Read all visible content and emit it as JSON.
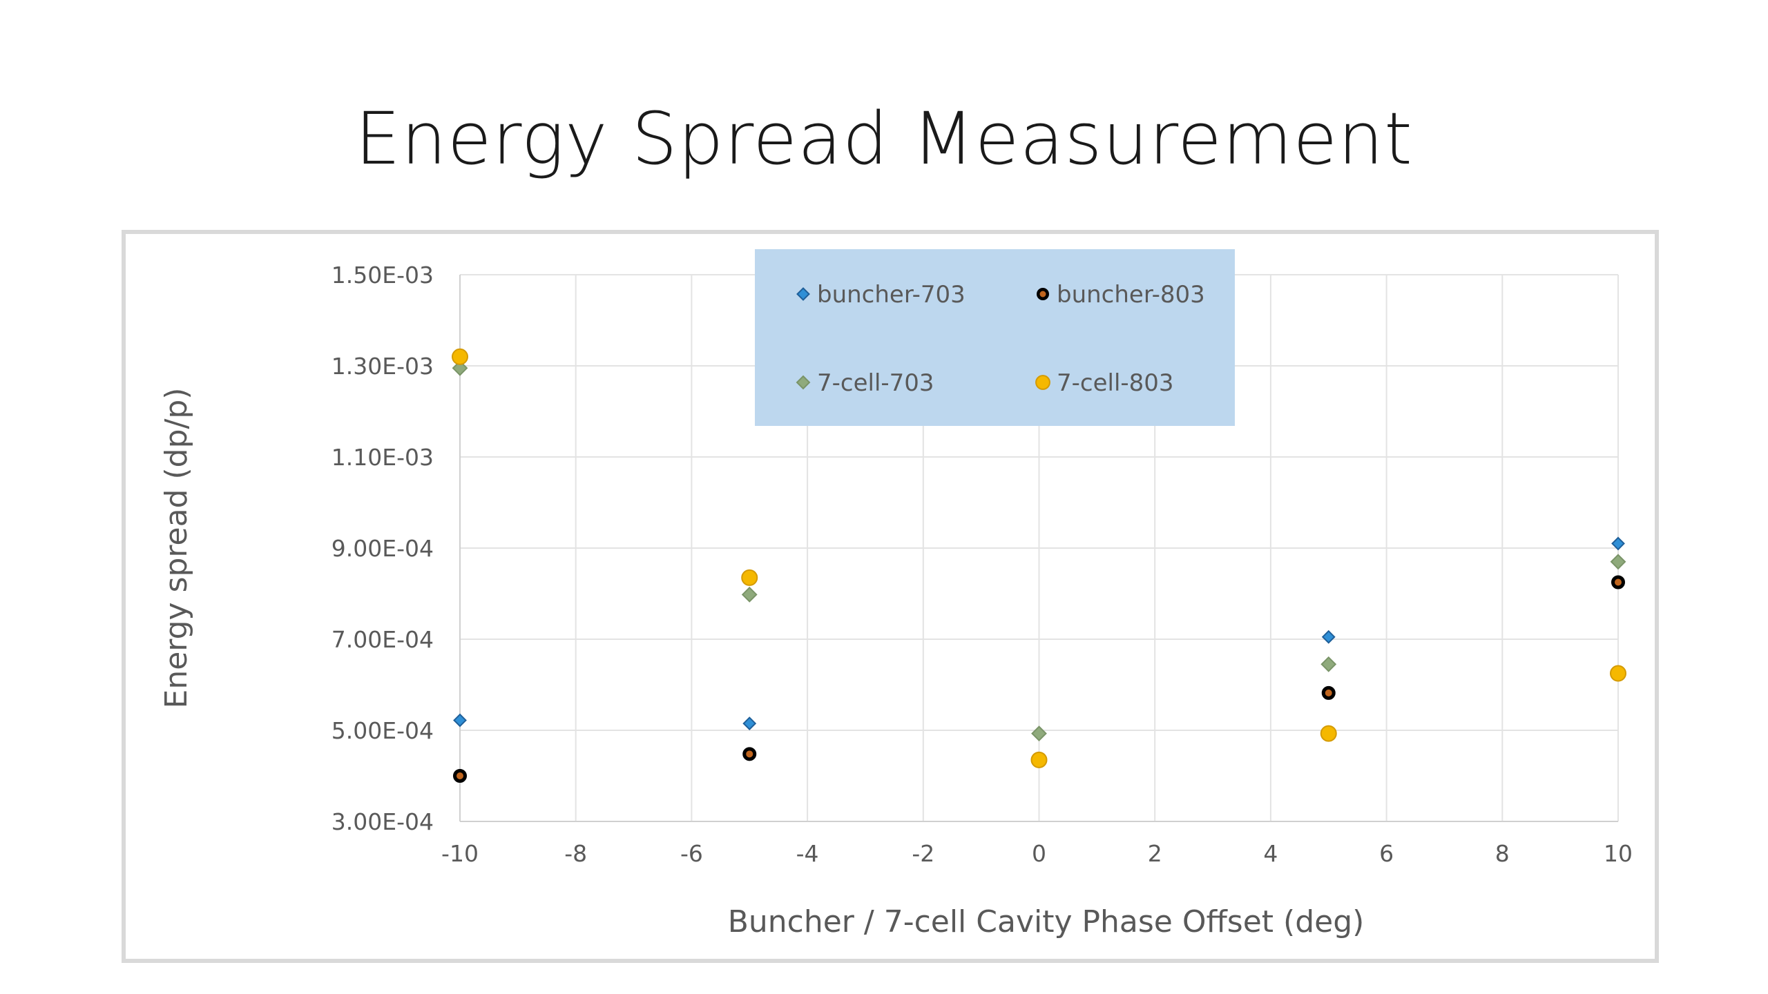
{
  "slide": {
    "title": "Energy Spread Measurement"
  },
  "chart_data": {
    "type": "scatter",
    "title": "",
    "xlabel": "Buncher / 7-cell Cavity Phase Offset (deg)",
    "ylabel": "Energy spread (dp/p)",
    "xlim": [
      -10,
      10
    ],
    "ylim": [
      0.0003,
      0.0015
    ],
    "x_ticks": [
      "-10",
      "-8",
      "-6",
      "-4",
      "-2",
      "0",
      "2",
      "4",
      "6",
      "8",
      "10"
    ],
    "y_ticks": [
      "3.00E-04",
      "5.00E-04",
      "7.00E-04",
      "9.00E-04",
      "1.10E-03",
      "1.30E-03",
      "1.50E-03"
    ],
    "grid": true,
    "legend_position": "top-center",
    "series": [
      {
        "name": "buncher-703",
        "marker": "diamond",
        "color": "#2f8fd6",
        "stroke": "#1f5f99",
        "points": [
          [
            -10,
            0.000522
          ],
          [
            -5,
            0.000515
          ],
          [
            5,
            0.000705
          ],
          [
            10,
            0.00091
          ]
        ]
      },
      {
        "name": "buncher-803",
        "marker": "circle",
        "color": "#c0651e",
        "stroke": "#000000",
        "points": [
          [
            -10,
            0.0004
          ],
          [
            -5,
            0.000448
          ],
          [
            5,
            0.000582
          ],
          [
            10,
            0.000825
          ]
        ]
      },
      {
        "name": "7-cell-703",
        "marker": "diamond",
        "color": "#8faa7c",
        "stroke": "#7a9468",
        "points": [
          [
            -10,
            0.001295
          ],
          [
            -5,
            0.000798
          ],
          [
            0,
            0.000493
          ],
          [
            5,
            0.000645
          ],
          [
            10,
            0.00087
          ]
        ]
      },
      {
        "name": "7-cell-803",
        "marker": "circle",
        "color": "#f5b800",
        "stroke": "#d49a00",
        "points": [
          [
            -10,
            0.00132
          ],
          [
            -5,
            0.000835
          ],
          [
            0,
            0.000435
          ],
          [
            5,
            0.000493
          ],
          [
            10,
            0.000625
          ]
        ]
      }
    ],
    "legend_background": "#bdd7ee"
  }
}
